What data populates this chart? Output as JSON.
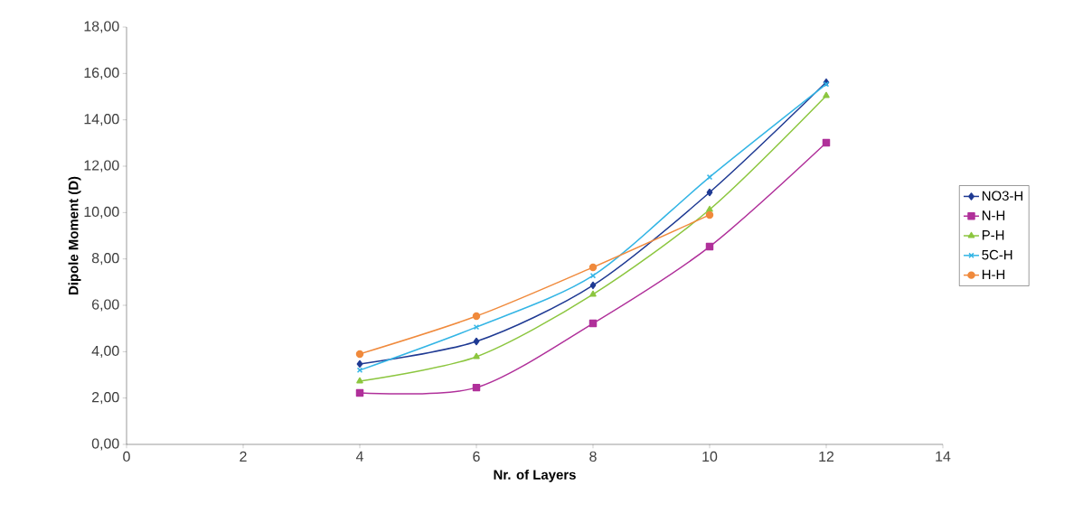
{
  "chart_data": {
    "type": "line",
    "xlabel": "Nr. of Layers",
    "ylabel": "Dipole Moment (D)",
    "x": [
      4,
      6,
      8,
      10,
      12
    ],
    "series": [
      {
        "name": "NO3-H",
        "color": "#1f3a93",
        "marker": "diamond",
        "values": [
          3.47,
          4.44,
          6.86,
          10.87,
          15.62
        ]
      },
      {
        "name": "N-H",
        "color": "#b0309a",
        "marker": "square",
        "values": [
          2.22,
          2.45,
          5.22,
          8.53,
          13.01
        ]
      },
      {
        "name": "P-H",
        "color": "#8cc63f",
        "marker": "triangle",
        "values": [
          2.73,
          3.78,
          6.47,
          10.13,
          15.04
        ]
      },
      {
        "name": "5C-H",
        "color": "#33b5e5",
        "marker": "cross",
        "values": [
          3.2,
          5.06,
          7.28,
          11.53,
          15.54
        ]
      },
      {
        "name": "H-H",
        "color": "#f08a3c",
        "marker": "circle",
        "values": [
          3.9,
          5.53,
          7.64,
          9.9,
          null
        ]
      }
    ],
    "xlim": [
      0,
      14
    ],
    "xticks": [
      0,
      2,
      4,
      6,
      8,
      10,
      12,
      14
    ],
    "ylim": [
      0,
      18
    ],
    "yticks": [
      {
        "value": 0,
        "label": "0,00"
      },
      {
        "value": 2,
        "label": "2,00"
      },
      {
        "value": 4,
        "label": "4,00"
      },
      {
        "value": 6,
        "label": "6,00"
      },
      {
        "value": 8,
        "label": "8,00"
      },
      {
        "value": 10,
        "label": "10,00"
      },
      {
        "value": 12,
        "label": "12,00"
      },
      {
        "value": 14,
        "label": "14,00"
      },
      {
        "value": 16,
        "label": "16,00"
      },
      {
        "value": 18,
        "label": "18,00"
      }
    ],
    "grid": false,
    "legend": "right",
    "line_style": "solid"
  }
}
